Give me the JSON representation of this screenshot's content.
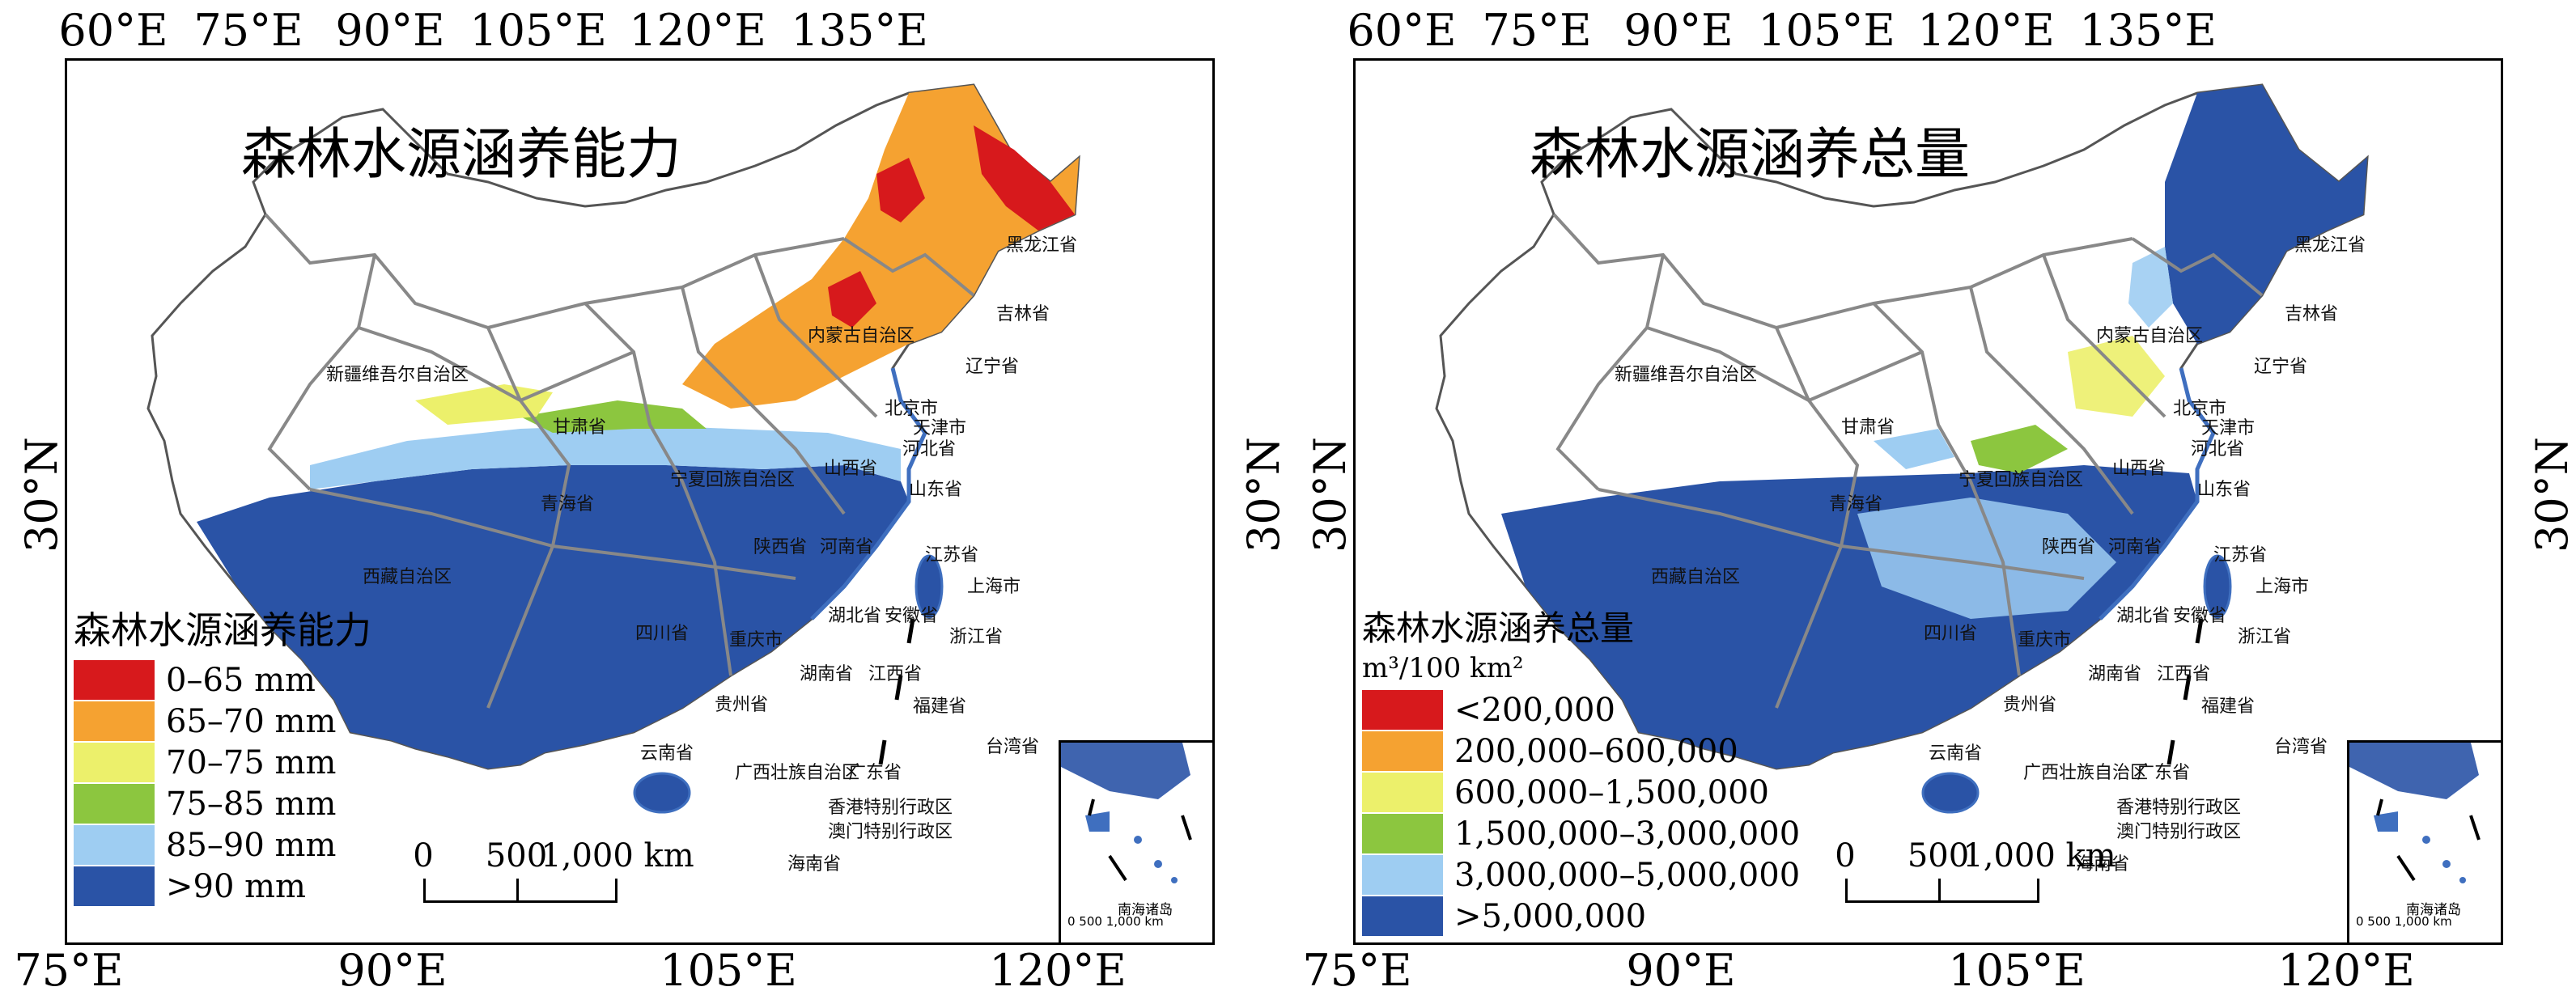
{
  "colors": {
    "c1": "#d7191c",
    "c2": "#f5a231",
    "c3": "#ecf06b",
    "c4": "#8cc63f",
    "c5": "#9ecdf2",
    "c6": "#2a53a6",
    "boundary": "#888888",
    "coast": "#3f6fbf"
  },
  "longitudes_top": [
    "60°E",
    "75°E",
    "90°E",
    "105°E",
    "120°E",
    "135°E"
  ],
  "longitudes_bottom": [
    "75°E",
    "90°E",
    "105°E",
    "120°E"
  ],
  "latitude": "30°N",
  "scale": {
    "zero": "0",
    "mid": "500",
    "end": "1,000 km"
  },
  "inset": {
    "label": "南海诸岛",
    "scale": "0  500 1,000 km"
  },
  "provinces": [
    "黑龙江省",
    "吉林省",
    "辽宁省",
    "内蒙古自治区",
    "新疆维吾尔自治区",
    "北京市",
    "天津市",
    "河北省",
    "山西省",
    "山东省",
    "甘肃省",
    "宁夏回族自治区",
    "青海省",
    "陕西省",
    "河南省",
    "江苏省",
    "上海市",
    "安徽省",
    "湖北省",
    "西藏自治区",
    "四川省",
    "重庆市",
    "浙江省",
    "湖南省",
    "江西省",
    "福建省",
    "贵州省",
    "云南省",
    "广西壮族自治区",
    "广东省",
    "台湾省",
    "香港特别行政区",
    "澳门特别行政区",
    "海南省"
  ],
  "left": {
    "title": "森林水源涵养能力",
    "legend_title": "森林水源涵养能力",
    "legend": [
      {
        "label": "0–65 mm",
        "color": "#d7191c"
      },
      {
        "label": "65–70 mm",
        "color": "#f5a231"
      },
      {
        "label": "70–75 mm",
        "color": "#ecf06b"
      },
      {
        "label": "75–85 mm",
        "color": "#8cc63f"
      },
      {
        "label": "85–90 mm",
        "color": "#9ecdf2"
      },
      {
        "label": ">90 mm",
        "color": "#2a53a6"
      }
    ]
  },
  "right": {
    "title": "森林水源涵养总量",
    "legend_title": "森林水源涵养总量",
    "legend_unit": "m³/100 km²",
    "legend": [
      {
        "label": "<200,000",
        "color": "#d7191c"
      },
      {
        "label": "200,000–600,000",
        "color": "#f5a231"
      },
      {
        "label": "600,000–1,500,000",
        "color": "#ecf06b"
      },
      {
        "label": "1,500,000–3,000,000",
        "color": "#8cc63f"
      },
      {
        "label": "3,000,000–5,000,000",
        "color": "#9ecdf2"
      },
      {
        "label": ">5,000,000",
        "color": "#2a53a6"
      }
    ]
  }
}
